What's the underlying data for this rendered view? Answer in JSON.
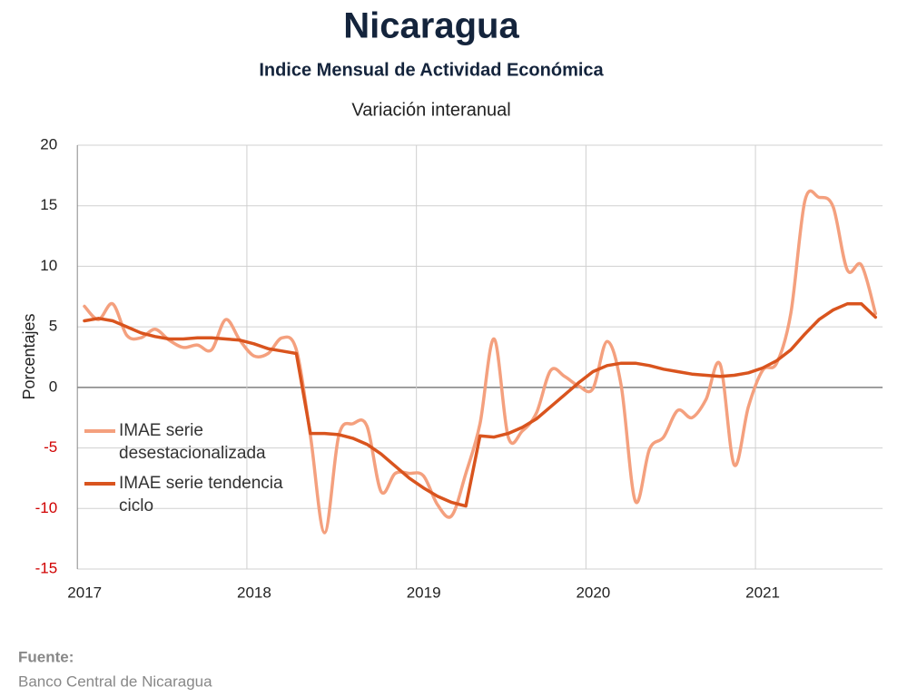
{
  "chart_data": {
    "type": "line",
    "title": "Nicaragua",
    "subtitle": "Indice Mensual de  Actividad Económica",
    "caption": "Variación interanual",
    "y_label": "Porcentajes",
    "source_label": "Fuente:",
    "source": "Banco Central de Nicaragua",
    "categories": [
      "2017",
      null,
      null,
      null,
      null,
      null,
      null,
      null,
      null,
      null,
      null,
      null,
      "2018",
      null,
      null,
      null,
      null,
      null,
      null,
      null,
      null,
      null,
      null,
      null,
      "2019",
      null,
      null,
      null,
      null,
      null,
      null,
      null,
      null,
      null,
      null,
      null,
      "2020",
      null,
      null,
      null,
      null,
      null,
      null,
      null,
      null,
      null,
      null,
      null,
      "2021",
      null,
      null,
      null,
      null,
      null,
      null,
      null,
      null
    ],
    "series": [
      {
        "name": "IMAE serie desestacionalizada",
        "color": "#f4a07e",
        "smooth": true,
        "values": [
          6.7,
          5.6,
          6.9,
          4.3,
          4.1,
          4.8,
          3.9,
          3.3,
          3.5,
          3.1,
          5.6,
          3.9,
          2.6,
          2.8,
          4.1,
          3.1,
          -4.0,
          -12.0,
          -4.0,
          -3.0,
          -3.2,
          -8.6,
          -7.1,
          -7.1,
          -7.3,
          -9.7,
          -10.6,
          -7.1,
          -3.0,
          4.0,
          -4.1,
          -3.6,
          -2.1,
          1.4,
          0.9,
          0.1,
          -0.1,
          3.8,
          0.1,
          -9.4,
          -5.1,
          -4.1,
          -1.9,
          -2.5,
          -1.0,
          1.9,
          -6.4,
          -1.6,
          1.4,
          2.0,
          6.1,
          15.4,
          15.7,
          14.9,
          9.7,
          10.1,
          6.1
        ]
      },
      {
        "name": "IMAE serie tendencia ciclo",
        "color": "#d9541e",
        "smooth": false,
        "values": [
          5.5,
          5.7,
          5.5,
          5.0,
          4.5,
          4.2,
          4.0,
          4.0,
          4.1,
          4.1,
          4.0,
          3.9,
          3.6,
          3.2,
          3.0,
          2.8,
          -3.8,
          -3.8,
          -3.9,
          -4.2,
          -4.7,
          -5.5,
          -6.5,
          -7.5,
          -8.3,
          -9.0,
          -9.5,
          -9.8,
          -4.0,
          -4.1,
          -3.8,
          -3.3,
          -2.6,
          -1.6,
          -0.6,
          0.4,
          1.3,
          1.8,
          2.0,
          2.0,
          1.8,
          1.5,
          1.3,
          1.1,
          1.0,
          0.9,
          1.0,
          1.2,
          1.6,
          2.2,
          3.1,
          4.4,
          5.6,
          6.4,
          6.9,
          6.9,
          5.8
        ]
      }
    ],
    "ylim": [
      -15,
      20
    ],
    "yticks": [
      -15,
      -10,
      -5,
      0,
      5,
      10,
      15,
      20
    ],
    "grid": true
  }
}
